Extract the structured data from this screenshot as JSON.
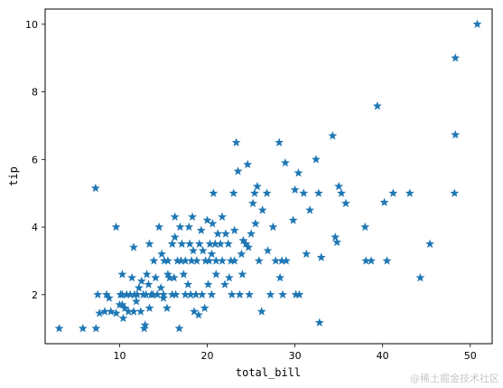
{
  "chart_data": {
    "type": "scatter",
    "marker": "star",
    "marker_color": "#1f77b4",
    "title": "",
    "xlabel": "total_bill",
    "ylabel": "tip",
    "xlim": [
      1.5,
      52.5
    ],
    "ylim": [
      0.55,
      10.45
    ],
    "xticks": [
      10,
      20,
      30,
      40,
      50
    ],
    "yticks": [
      2,
      4,
      6,
      8,
      10
    ],
    "grid": false,
    "legend": false,
    "points": [
      [
        3.1,
        1.0
      ],
      [
        5.8,
        1.0
      ],
      [
        7.3,
        1.0
      ],
      [
        7.25,
        5.15
      ],
      [
        7.5,
        2.0
      ],
      [
        7.7,
        1.45
      ],
      [
        8.3,
        1.5
      ],
      [
        8.5,
        2.0
      ],
      [
        8.8,
        1.9
      ],
      [
        9.0,
        1.5
      ],
      [
        9.6,
        4.0
      ],
      [
        9.6,
        1.45
      ],
      [
        10.0,
        1.7
      ],
      [
        10.1,
        2.0
      ],
      [
        10.3,
        1.7
      ],
      [
        10.3,
        2.0
      ],
      [
        10.4,
        1.3
      ],
      [
        10.3,
        2.6
      ],
      [
        10.6,
        1.6
      ],
      [
        10.8,
        2.0
      ],
      [
        11.0,
        1.5
      ],
      [
        11.2,
        2.0
      ],
      [
        11.4,
        2.5
      ],
      [
        11.6,
        1.5
      ],
      [
        11.6,
        3.4
      ],
      [
        11.7,
        2.0
      ],
      [
        11.9,
        1.8
      ],
      [
        12.0,
        2.0
      ],
      [
        12.2,
        2.2
      ],
      [
        12.4,
        1.5
      ],
      [
        12.5,
        2.4
      ],
      [
        12.7,
        2.0
      ],
      [
        12.8,
        1.0
      ],
      [
        12.9,
        1.1
      ],
      [
        13.0,
        2.0
      ],
      [
        13.1,
        2.6
      ],
      [
        13.3,
        2.3
      ],
      [
        13.4,
        1.6
      ],
      [
        13.4,
        3.5
      ],
      [
        13.6,
        2.0
      ],
      [
        13.8,
        2.0
      ],
      [
        13.9,
        3.0
      ],
      [
        14.1,
        2.5
      ],
      [
        14.3,
        2.0
      ],
      [
        14.5,
        4.0
      ],
      [
        14.7,
        2.2
      ],
      [
        14.8,
        3.2
      ],
      [
        15.0,
        1.9
      ],
      [
        15.0,
        2.0
      ],
      [
        15.1,
        3.0
      ],
      [
        15.4,
        1.6
      ],
      [
        15.5,
        3.0
      ],
      [
        15.5,
        2.6
      ],
      [
        15.7,
        2.5
      ],
      [
        16.0,
        2.0
      ],
      [
        16.0,
        3.5
      ],
      [
        16.2,
        2.5
      ],
      [
        16.3,
        3.7
      ],
      [
        16.3,
        4.3
      ],
      [
        16.4,
        2.0
      ],
      [
        16.6,
        3.0
      ],
      [
        16.8,
        1.0
      ],
      [
        16.9,
        4.0
      ],
      [
        17.0,
        3.0
      ],
      [
        17.1,
        3.5
      ],
      [
        17.3,
        2.6
      ],
      [
        17.5,
        3.0
      ],
      [
        17.5,
        2.0
      ],
      [
        17.8,
        2.3
      ],
      [
        17.9,
        4.0
      ],
      [
        18.0,
        3.5
      ],
      [
        18.1,
        2.0
      ],
      [
        18.2,
        3.0
      ],
      [
        18.3,
        4.3
      ],
      [
        18.4,
        3.3
      ],
      [
        18.5,
        1.5
      ],
      [
        18.7,
        2.0
      ],
      [
        18.8,
        3.0
      ],
      [
        19.0,
        1.4
      ],
      [
        19.1,
        3.5
      ],
      [
        19.3,
        3.9
      ],
      [
        19.4,
        2.0
      ],
      [
        19.5,
        3.3
      ],
      [
        19.7,
        1.6
      ],
      [
        19.8,
        3.0
      ],
      [
        20.0,
        4.2
      ],
      [
        20.1,
        2.3
      ],
      [
        20.2,
        3.0
      ],
      [
        20.3,
        3.5
      ],
      [
        20.5,
        3.2
      ],
      [
        20.5,
        2.0
      ],
      [
        20.6,
        4.1
      ],
      [
        20.7,
        5.0
      ],
      [
        20.9,
        3.5
      ],
      [
        21.0,
        3.0
      ],
      [
        21.0,
        2.6
      ],
      [
        21.2,
        3.8
      ],
      [
        21.5,
        3.5
      ],
      [
        21.7,
        4.3
      ],
      [
        21.7,
        3.0
      ],
      [
        22.0,
        2.3
      ],
      [
        22.1,
        3.8
      ],
      [
        22.4,
        3.5
      ],
      [
        22.5,
        2.5
      ],
      [
        22.7,
        3.0
      ],
      [
        22.8,
        2.0
      ],
      [
        23.0,
        5.0
      ],
      [
        23.1,
        3.0
      ],
      [
        23.1,
        3.9
      ],
      [
        23.3,
        6.5
      ],
      [
        23.5,
        5.65
      ],
      [
        23.7,
        2.0
      ],
      [
        23.9,
        3.2
      ],
      [
        24.0,
        2.6
      ],
      [
        24.1,
        3.6
      ],
      [
        24.4,
        3.5
      ],
      [
        24.6,
        5.85
      ],
      [
        24.7,
        3.4
      ],
      [
        24.8,
        2.0
      ],
      [
        25.0,
        3.8
      ],
      [
        25.2,
        4.7
      ],
      [
        25.4,
        5.0
      ],
      [
        25.5,
        4.1
      ],
      [
        25.7,
        5.2
      ],
      [
        25.9,
        3.0
      ],
      [
        26.2,
        1.5
      ],
      [
        26.3,
        4.5
      ],
      [
        26.8,
        5.0
      ],
      [
        26.9,
        3.3
      ],
      [
        27.2,
        2.0
      ],
      [
        27.5,
        4.0
      ],
      [
        27.8,
        3.0
      ],
      [
        28.2,
        6.5
      ],
      [
        28.3,
        2.5
      ],
      [
        28.5,
        3.0
      ],
      [
        28.6,
        2.0
      ],
      [
        28.9,
        5.9
      ],
      [
        29.0,
        3.0
      ],
      [
        29.8,
        4.2
      ],
      [
        30.0,
        5.1
      ],
      [
        30.1,
        2.0
      ],
      [
        30.4,
        5.6
      ],
      [
        30.5,
        2.0
      ],
      [
        31.0,
        5.0
      ],
      [
        31.3,
        3.2
      ],
      [
        31.7,
        4.5
      ],
      [
        32.4,
        6.0
      ],
      [
        32.7,
        5.0
      ],
      [
        32.8,
        1.17
      ],
      [
        33.0,
        3.1
      ],
      [
        34.3,
        6.7
      ],
      [
        34.6,
        3.7
      ],
      [
        34.8,
        3.55
      ],
      [
        35.0,
        5.2
      ],
      [
        35.3,
        5.0
      ],
      [
        35.8,
        4.7
      ],
      [
        38.0,
        4.0
      ],
      [
        38.1,
        3.0
      ],
      [
        38.7,
        3.0
      ],
      [
        39.4,
        7.58
      ],
      [
        40.2,
        4.73
      ],
      [
        40.5,
        3.0
      ],
      [
        41.2,
        5.0
      ],
      [
        43.1,
        5.0
      ],
      [
        44.3,
        2.5
      ],
      [
        45.4,
        3.5
      ],
      [
        48.2,
        5.0
      ],
      [
        48.3,
        6.73
      ],
      [
        48.3,
        9.0
      ],
      [
        50.8,
        10.0
      ]
    ]
  },
  "watermark": "@稀土掘金技术社区"
}
